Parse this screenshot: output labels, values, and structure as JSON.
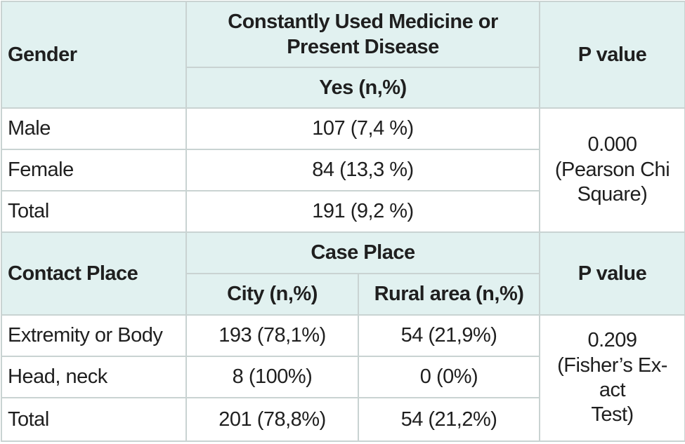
{
  "table1": {
    "header": {
      "gender": "Gender",
      "group_line1": "Constantly Used Medicine or",
      "group_line2": "Present Disease",
      "sub": "Yes (n,%)",
      "pvalue": "P value"
    },
    "rows": [
      {
        "label": "Male",
        "value": "107 (7,4 %)"
      },
      {
        "label": "Female",
        "value": "84 (13,3 %)"
      },
      {
        "label": "Total",
        "value": "191 (9,2 %)"
      }
    ],
    "pvalue_lines": [
      "0.000",
      "(Pearson Chi",
      "Square)"
    ]
  },
  "table2": {
    "header": {
      "contact": "Contact Place",
      "group": "Case Place",
      "city": "City (n,%)",
      "rural": "Rural area (n,%)",
      "pvalue": "P value"
    },
    "rows": [
      {
        "label": "Extremity or Body",
        "city": "193 (78,1%)",
        "rural": "54 (21,9%)"
      },
      {
        "label": "Head, neck",
        "city": "8 (100%)",
        "rural": "0 (0%)"
      },
      {
        "label": "Total",
        "city": "201 (78,8%)",
        "rural": "54 (21,2%)"
      }
    ],
    "pvalue_lines": [
      "0.209",
      "(Fisher’s Ex-",
      "act",
      "Test)"
    ]
  }
}
